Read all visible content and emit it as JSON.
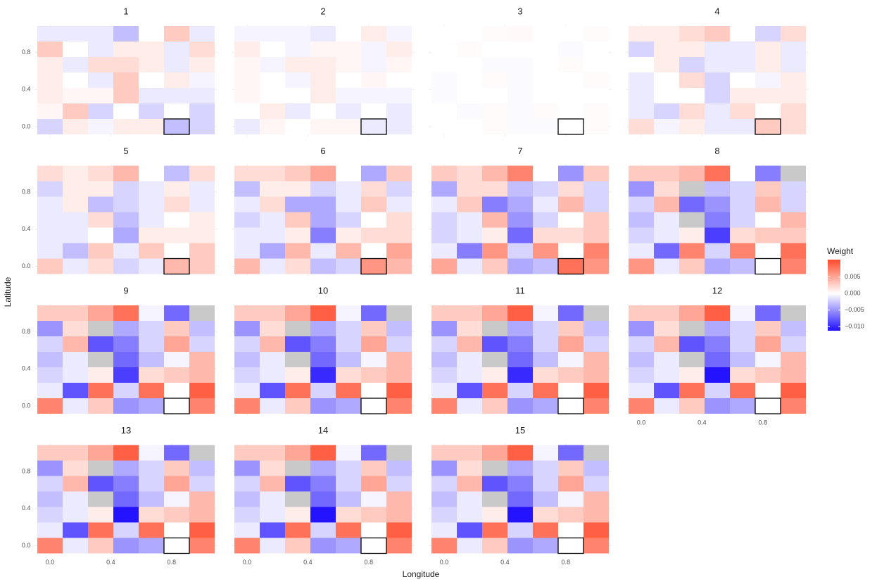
{
  "chart_data": {
    "type": "heatmap",
    "x_label": "Longitude",
    "y_label": "Latitude",
    "legend_title": "Weight",
    "x": [
      0,
      0.1667,
      0.3333,
      0.5,
      0.6667,
      0.8333,
      1
    ],
    "y": [
      1,
      0.8333,
      0.6667,
      0.5,
      0.3333,
      0.1667,
      0
    ],
    "xlim": [
      -0.1,
      1.1
    ],
    "ylim": [
      -0.1,
      1.1
    ],
    "xticks": [
      {
        "value": 0,
        "label": "0.0"
      },
      {
        "value": 0.4,
        "label": "0.4"
      },
      {
        "value": 0.8,
        "label": "0.8"
      }
    ],
    "yticks": [
      {
        "value": 0,
        "label": "0.0"
      },
      {
        "value": 0.4,
        "label": "0.4"
      },
      {
        "value": 0.8,
        "label": "0.8"
      }
    ],
    "zlim": [
      -0.0112,
      0.0102
    ],
    "zticks": [
      {
        "value": 0.005,
        "label": "0.005"
      },
      {
        "value": 0,
        "label": "0.000"
      },
      {
        "value": -0.005,
        "label": "−0.005"
      },
      {
        "value": -0.01,
        "label": "−0.010"
      }
    ],
    "low_color": "#1f0fff",
    "mid_color": "#ffffff",
    "high_color": "#ff4a2a",
    "na_color": "#c9c9c9",
    "grid": true,
    "highlight": {
      "x": 0.8333,
      "y": 0
    },
    "panels": [
      {
        "title": "1",
        "z": [
          [
            -0.001,
            -0.001,
            -0.001,
            -0.003,
            0,
            0.003,
            -0.001
          ],
          [
            0.003,
            0,
            -0.001,
            0.001,
            0.001,
            -0.001,
            0.002
          ],
          [
            0.001,
            -0.001,
            0.002,
            0.002,
            0.001,
            -0.001,
            0.001
          ],
          [
            0.001,
            0,
            -0.001,
            0.003,
            0,
            0.001,
            -0.0005
          ],
          [
            0.001,
            0.0005,
            0.0005,
            0.003,
            -0.001,
            -0.001,
            -0.001
          ],
          [
            0.0005,
            0.003,
            -0.002,
            0,
            -0.002,
            0,
            -0.002
          ],
          [
            -0.002,
            0.001,
            -0.0005,
            0.001,
            0.001,
            -0.003,
            -0.002
          ]
        ]
      },
      {
        "title": "2",
        "z": [
          [
            -0.0005,
            -0.0005,
            -0.0005,
            -0.001,
            0,
            0.001,
            -0.0005
          ],
          [
            0.001,
            0,
            -0.0005,
            0.0005,
            0.0005,
            -0.0005,
            0.001
          ],
          [
            0.0005,
            -0.0005,
            0.001,
            0.001,
            0.0005,
            -0.0005,
            0.0005
          ],
          [
            0.0005,
            0,
            -0.0005,
            0.001,
            0,
            0.0005,
            0
          ],
          [
            0.0005,
            0,
            0,
            0.001,
            -0.0005,
            -0.0005,
            -0.0005
          ],
          [
            0,
            0.001,
            -0.001,
            0,
            -0.001,
            0,
            -0.001
          ],
          [
            -0.001,
            0.0005,
            0,
            0.0005,
            0.0005,
            -0.001,
            -0.001
          ]
        ]
      },
      {
        "title": "3",
        "z": [
          [
            0,
            0,
            0.0002,
            0.0003,
            0,
            0,
            0.0002
          ],
          [
            0,
            0.0002,
            0,
            0,
            0,
            -0.0002,
            0
          ],
          [
            0,
            0,
            -0.0002,
            -0.0002,
            0,
            0.0002,
            0
          ],
          [
            -0.0002,
            0,
            0.0002,
            -0.0002,
            0,
            0,
            0.0002
          ],
          [
            -0.0002,
            0,
            0,
            -0.0002,
            0,
            0,
            0
          ],
          [
            0,
            -0.0002,
            0.0002,
            -0.0002,
            0.0002,
            0,
            0.0002
          ],
          [
            0,
            0,
            0.0002,
            -0.0002,
            -0.0002,
            0,
            0.0002
          ]
        ]
      },
      {
        "title": "4",
        "z": [
          [
            0.001,
            0.001,
            0.002,
            0.003,
            0,
            -0.002,
            0.002
          ],
          [
            -0.002,
            0.001,
            0.001,
            -0.001,
            -0.001,
            0.001,
            -0.001
          ],
          [
            0,
            0.001,
            -0.002,
            -0.001,
            -0.001,
            0.001,
            -0.001
          ],
          [
            -0.001,
            0,
            0.002,
            -0.002,
            0,
            -0.0005,
            0.001
          ],
          [
            -0.001,
            0,
            0,
            -0.002,
            0.001,
            0.001,
            0.001
          ],
          [
            -0.001,
            -0.002,
            0.002,
            -0.001,
            0.002,
            0,
            0.002
          ],
          [
            0.002,
            -0.0005,
            0.001,
            -0.001,
            -0.001,
            0.003,
            0.002
          ]
        ]
      },
      {
        "title": "5",
        "z": [
          [
            0.002,
            0.001,
            0.002,
            0.004,
            0,
            -0.003,
            0.002
          ],
          [
            -0.002,
            0.001,
            0.001,
            -0.002,
            -0.001,
            0.001,
            -0.001
          ],
          [
            -0.001,
            0.001,
            -0.003,
            -0.002,
            -0.001,
            0.002,
            -0.001
          ],
          [
            -0.001,
            -0.001,
            0.002,
            -0.003,
            -0.001,
            0,
            0.001
          ],
          [
            -0.001,
            -0.001,
            0,
            -0.004,
            0.001,
            0.001,
            0.001
          ],
          [
            -0.001,
            -0.003,
            0.003,
            -0.001,
            0.003,
            0,
            0.003
          ],
          [
            0.003,
            -0.001,
            0.002,
            -0.002,
            -0.001,
            0.004,
            0.003
          ]
        ]
      },
      {
        "title": "6",
        "z": [
          [
            0.002,
            0.002,
            0.003,
            0.005,
            0,
            -0.004,
            0.003
          ],
          [
            -0.003,
            0.001,
            0.001,
            -0.002,
            -0.001,
            0.002,
            -0.002
          ],
          [
            -0.001,
            0.002,
            -0.004,
            -0.004,
            -0.001,
            0.003,
            -0.001
          ],
          [
            -0.002,
            -0.001,
            0.003,
            -0.004,
            -0.002,
            0,
            0.002
          ],
          [
            -0.001,
            -0.001,
            0.001,
            -0.006,
            0.001,
            0.002,
            0.002
          ],
          [
            -0.001,
            -0.004,
            0.004,
            -0.001,
            0.004,
            0,
            0.005
          ],
          [
            0.004,
            -0.001,
            0.002,
            -0.003,
            -0.002,
            0.006,
            0.004
          ]
        ]
      },
      {
        "title": "7",
        "z": [
          [
            0.003,
            0.002,
            0.004,
            0.007,
            0,
            -0.005,
            0.003
          ],
          [
            -0.004,
            0.002,
            0.002,
            -0.003,
            -0.002,
            0.002,
            -0.002
          ],
          [
            -0.001,
            0.003,
            -0.006,
            -0.004,
            -0.001,
            0.004,
            -0.002
          ],
          [
            -0.002,
            -0.001,
            0.004,
            -0.005,
            -0.002,
            0,
            0.003
          ],
          [
            -0.002,
            -0.001,
            0.001,
            -0.007,
            0.002,
            0.002,
            0.003
          ],
          [
            -0.001,
            -0.006,
            0.006,
            -0.002,
            0.006,
            0,
            0.007
          ],
          [
            0.005,
            -0.001,
            0.003,
            -0.004,
            -0.003,
            0.008,
            0.006
          ]
        ]
      },
      {
        "title": "8",
        "z": [
          [
            0.003,
            0.003,
            0.004,
            0.008,
            0,
            -0.006,
            null
          ],
          [
            -0.005,
            0.002,
            null,
            -0.003,
            -0.002,
            0.003,
            -0.002
          ],
          [
            -0.002,
            0.004,
            -0.007,
            -0.005,
            -0.002,
            0.004,
            -0.002
          ],
          [
            -0.003,
            -0.001,
            null,
            -0.006,
            -0.002,
            0,
            0.004
          ],
          [
            -0.002,
            -0.001,
            0.001,
            -0.009,
            0.002,
            0.003,
            0.003
          ],
          [
            -0.001,
            -0.007,
            0.007,
            -0.002,
            0.007,
            0,
            0.008
          ],
          [
            0.006,
            -0.001,
            0.003,
            -0.004,
            -0.003,
            0,
            0.007
          ]
        ]
      },
      {
        "title": "9",
        "z": [
          [
            0.003,
            0.003,
            0.005,
            0.008,
            -0.0005,
            -0.007,
            null
          ],
          [
            -0.005,
            0.002,
            null,
            -0.004,
            -0.002,
            0.003,
            -0.003
          ],
          [
            -0.002,
            0.004,
            -0.008,
            -0.006,
            -0.002,
            0.005,
            -0.002
          ],
          [
            -0.003,
            -0.001,
            null,
            -0.007,
            -0.003,
            -0.0005,
            0.004
          ],
          [
            -0.002,
            -0.001,
            0.001,
            -0.009,
            0.002,
            0.003,
            0.004
          ],
          [
            -0.001,
            -0.008,
            0.008,
            -0.002,
            0.008,
            0,
            0.009
          ],
          [
            0.007,
            -0.001,
            0.003,
            -0.005,
            -0.004,
            0,
            0.007
          ]
        ]
      },
      {
        "title": "10",
        "z": [
          [
            0.003,
            0.003,
            0.005,
            0.009,
            -0.0005,
            -0.007,
            null
          ],
          [
            -0.005,
            0.002,
            null,
            -0.004,
            -0.002,
            0.003,
            -0.003
          ],
          [
            -0.002,
            0.004,
            -0.008,
            -0.006,
            -0.002,
            0.005,
            -0.002
          ],
          [
            -0.003,
            -0.001,
            null,
            -0.007,
            -0.003,
            -0.0005,
            0.004
          ],
          [
            -0.002,
            -0.001,
            0.001,
            -0.01,
            0.002,
            0.003,
            0.004
          ],
          [
            -0.001,
            -0.008,
            0.008,
            -0.002,
            0.008,
            0,
            0.009
          ],
          [
            0.007,
            -0.001,
            0.003,
            -0.005,
            -0.004,
            0,
            0.007
          ]
        ]
      },
      {
        "title": "11",
        "z": [
          [
            0.003,
            0.003,
            0.005,
            0.009,
            -0.0005,
            -0.007,
            null
          ],
          [
            -0.005,
            0.002,
            null,
            -0.004,
            -0.002,
            0.003,
            -0.003
          ],
          [
            -0.002,
            0.004,
            -0.008,
            -0.006,
            -0.002,
            0.005,
            -0.002
          ],
          [
            -0.003,
            -0.001,
            null,
            -0.007,
            -0.003,
            -0.0005,
            0.004
          ],
          [
            -0.002,
            -0.001,
            0.001,
            -0.01,
            0.002,
            0.003,
            0.004
          ],
          [
            -0.001,
            -0.008,
            0.008,
            -0.002,
            0.008,
            0,
            0.009
          ],
          [
            0.007,
            -0.001,
            0.003,
            -0.005,
            -0.004,
            0,
            0.007
          ]
        ]
      },
      {
        "title": "12",
        "z": [
          [
            0.003,
            0.003,
            0.005,
            0.009,
            -0.0005,
            -0.007,
            null
          ],
          [
            -0.005,
            0.002,
            null,
            -0.004,
            -0.002,
            0.003,
            -0.003
          ],
          [
            -0.002,
            0.004,
            -0.008,
            -0.006,
            -0.002,
            0.005,
            -0.002
          ],
          [
            -0.003,
            -0.001,
            null,
            -0.007,
            -0.003,
            -0.0005,
            0.004
          ],
          [
            -0.002,
            -0.001,
            0.001,
            -0.011,
            0.002,
            0.003,
            0.004
          ],
          [
            -0.001,
            -0.008,
            0.008,
            -0.002,
            0.008,
            0,
            0.009
          ],
          [
            0.007,
            -0.001,
            0.003,
            -0.005,
            -0.004,
            0,
            0.007
          ]
        ]
      },
      {
        "title": "13",
        "z": [
          [
            0.003,
            0.003,
            0.005,
            0.009,
            -0.0005,
            -0.007,
            null
          ],
          [
            -0.005,
            0.002,
            null,
            -0.004,
            -0.002,
            0.003,
            -0.003
          ],
          [
            -0.002,
            0.004,
            -0.008,
            -0.006,
            -0.002,
            0.005,
            -0.002
          ],
          [
            -0.003,
            -0.001,
            null,
            -0.007,
            -0.003,
            -0.0005,
            0.004
          ],
          [
            -0.002,
            -0.001,
            0.001,
            -0.011,
            0.002,
            0.003,
            0.004
          ],
          [
            -0.001,
            -0.008,
            0.008,
            -0.002,
            0.008,
            0,
            0.009
          ],
          [
            0.007,
            -0.001,
            0.003,
            -0.005,
            -0.004,
            0,
            0.007
          ]
        ]
      },
      {
        "title": "14",
        "z": [
          [
            0.003,
            0.003,
            0.005,
            0.009,
            -0.0005,
            -0.007,
            null
          ],
          [
            -0.005,
            0.002,
            null,
            -0.004,
            -0.002,
            0.003,
            -0.003
          ],
          [
            -0.002,
            0.004,
            -0.008,
            -0.006,
            -0.002,
            0.005,
            -0.002
          ],
          [
            -0.003,
            -0.001,
            null,
            -0.007,
            -0.003,
            -0.0005,
            0.004
          ],
          [
            -0.002,
            -0.001,
            0.001,
            -0.011,
            0.002,
            0.003,
            0.004
          ],
          [
            -0.001,
            -0.008,
            0.008,
            -0.002,
            0.008,
            0,
            0.009
          ],
          [
            0.007,
            -0.001,
            0.003,
            -0.005,
            -0.004,
            0,
            0.007
          ]
        ]
      },
      {
        "title": "15",
        "z": [
          [
            0.003,
            0.003,
            0.005,
            0.009,
            -0.0005,
            -0.007,
            null
          ],
          [
            -0.005,
            0.002,
            null,
            -0.004,
            -0.002,
            0.003,
            -0.003
          ],
          [
            -0.002,
            0.004,
            -0.008,
            -0.006,
            -0.002,
            0.005,
            -0.002
          ],
          [
            -0.003,
            -0.001,
            null,
            -0.007,
            -0.003,
            -0.0005,
            0.004
          ],
          [
            -0.002,
            -0.001,
            0.001,
            -0.011,
            0.002,
            0.003,
            0.004
          ],
          [
            -0.001,
            -0.008,
            0.008,
            -0.002,
            0.008,
            0,
            0.009
          ],
          [
            0.007,
            -0.001,
            0.003,
            -0.005,
            -0.004,
            0,
            0.007
          ]
        ]
      }
    ]
  }
}
